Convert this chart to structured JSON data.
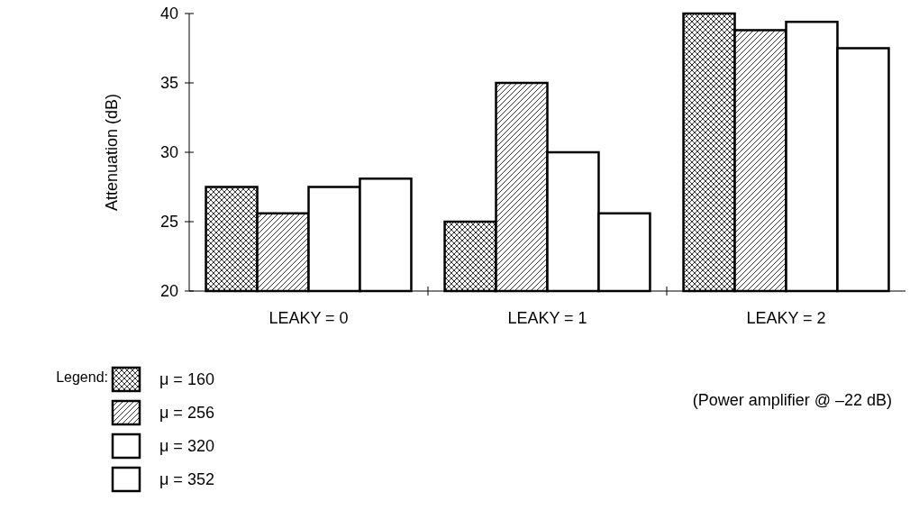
{
  "chart_data": {
    "type": "bar",
    "ylabel": "Attenuation (dB)",
    "legend_title": "Legend:",
    "legend": "bottom left",
    "categories": [
      "LEAKY = 0",
      "LEAKY = 1",
      "LEAKY = 2"
    ],
    "series": [
      {
        "name": "μ = 160",
        "color": "#000000",
        "values": [
          27.5,
          25,
          40
        ]
      },
      {
        "name": "μ = 256",
        "color": "#000000",
        "values": [
          25.6,
          35,
          38.8
        ]
      },
      {
        "name": "μ = 320",
        "color": "#ffffff",
        "values": [
          27.5,
          30,
          39.4
        ]
      },
      {
        "name": "μ = 352",
        "color": "#ffffff",
        "values": [
          28.1,
          25.6,
          37.5
        ]
      }
    ],
    "ylim": [
      20,
      40
    ],
    "yticks": [
      20,
      25,
      30,
      35,
      40
    ],
    "grid": false,
    "annotations": [
      "(Power amplifier @ –22 dB)"
    ]
  }
}
